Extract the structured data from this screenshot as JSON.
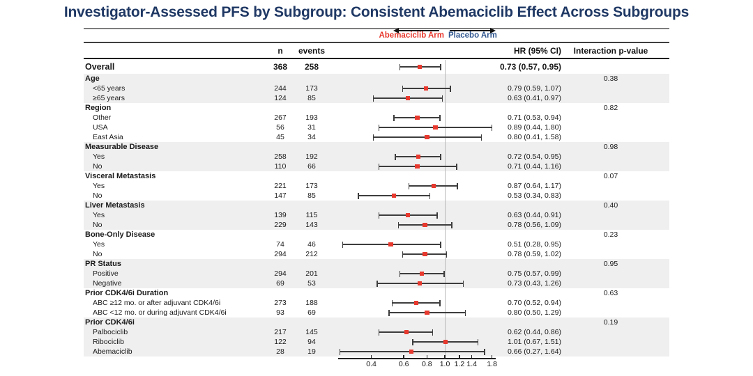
{
  "title": "Investigator-Assessed PFS by Subgroup: Consistent Abemaciclib Effect Across Subgroups",
  "legend": {
    "left_label": "Abemaciclib Arm",
    "right_label": "Placebo Arm"
  },
  "columns": {
    "n": "n",
    "events": "events",
    "hr": "HR (95% CI)",
    "interaction": "Interaction p-value"
  },
  "colors": {
    "title_navy": "#1f3864",
    "abemaciclib_red": "#e8392e",
    "placebo_blue": "#30568f",
    "bar_gray": "#3d3d3d",
    "shade_gray": "#efefef",
    "refline_gray": "#b8b8b8"
  },
  "chart_data": {
    "type": "scatter",
    "subtype": "forest-plot",
    "x_axis": {
      "scale": "log",
      "ticks": [
        "0.4",
        "0.6",
        "0.8",
        "1.0",
        "1.2",
        "1.4",
        "1.8"
      ],
      "reference_line": 1.0,
      "range": [
        0.25,
        1.9
      ]
    },
    "rows": [
      {
        "type": "overall",
        "label": "Overall",
        "n": "368",
        "events": "258",
        "hr": 0.73,
        "lo": 0.57,
        "hi": 0.95,
        "hr_text": "0.73 (0.57, 0.95)"
      },
      {
        "type": "section",
        "label": "Age",
        "p": "0.38"
      },
      {
        "type": "item",
        "label": "<65 years",
        "n": "244",
        "events": "173",
        "hr": 0.79,
        "lo": 0.59,
        "hi": 1.07,
        "hr_text": "0.79 (0.59, 1.07)"
      },
      {
        "type": "item",
        "label": "≥65 years",
        "n": "124",
        "events": "85",
        "hr": 0.63,
        "lo": 0.41,
        "hi": 0.97,
        "hr_text": "0.63 (0.41, 0.97)"
      },
      {
        "type": "section",
        "label": "Region",
        "p": "0.82"
      },
      {
        "type": "item",
        "label": "Other",
        "n": "267",
        "events": "193",
        "hr": 0.71,
        "lo": 0.53,
        "hi": 0.94,
        "hr_text": "0.71 (0.53, 0.94)"
      },
      {
        "type": "item",
        "label": "USA",
        "n": "56",
        "events": "31",
        "hr": 0.89,
        "lo": 0.44,
        "hi": 1.8,
        "hr_text": "0.89 (0.44, 1.80)"
      },
      {
        "type": "item",
        "label": "East Asia",
        "n": "45",
        "events": "34",
        "hr": 0.8,
        "lo": 0.41,
        "hi": 1.58,
        "hr_text": "0.80 (0.41, 1.58)"
      },
      {
        "type": "section",
        "label": "Measurable Disease",
        "p": "0.98"
      },
      {
        "type": "item",
        "label": "Yes",
        "n": "258",
        "events": "192",
        "hr": 0.72,
        "lo": 0.54,
        "hi": 0.95,
        "hr_text": "0.72 (0.54, 0.95)"
      },
      {
        "type": "item",
        "label": "No",
        "n": "110",
        "events": "66",
        "hr": 0.71,
        "lo": 0.44,
        "hi": 1.16,
        "hr_text": "0.71 (0.44, 1.16)"
      },
      {
        "type": "section",
        "label": "Visceral Metastasis",
        "p": "0.07"
      },
      {
        "type": "item",
        "label": "Yes",
        "n": "221",
        "events": "173",
        "hr": 0.87,
        "lo": 0.64,
        "hi": 1.17,
        "hr_text": "0.87 (0.64, 1.17)"
      },
      {
        "type": "item",
        "label": "No",
        "n": "147",
        "events": "85",
        "hr": 0.53,
        "lo": 0.34,
        "hi": 0.83,
        "hr_text": "0.53 (0.34, 0.83)"
      },
      {
        "type": "section",
        "label": "Liver Metastasis",
        "p": "0.40"
      },
      {
        "type": "item",
        "label": "Yes",
        "n": "139",
        "events": "115",
        "hr": 0.63,
        "lo": 0.44,
        "hi": 0.91,
        "hr_text": "0.63 (0.44, 0.91)"
      },
      {
        "type": "item",
        "label": "No",
        "n": "229",
        "events": "143",
        "hr": 0.78,
        "lo": 0.56,
        "hi": 1.09,
        "hr_text": "0.78 (0.56, 1.09)"
      },
      {
        "type": "section",
        "label": "Bone-Only Disease",
        "p": "0.23"
      },
      {
        "type": "item",
        "label": "Yes",
        "n": "74",
        "events": "46",
        "hr": 0.51,
        "lo": 0.28,
        "hi": 0.95,
        "hr_text": "0.51 (0.28, 0.95)"
      },
      {
        "type": "item",
        "label": "No",
        "n": "294",
        "events": "212",
        "hr": 0.78,
        "lo": 0.59,
        "hi": 1.02,
        "hr_text": "0.78 (0.59, 1.02)"
      },
      {
        "type": "section",
        "label": "PR Status",
        "p": "0.95"
      },
      {
        "type": "item",
        "label": "Positive",
        "n": "294",
        "events": "201",
        "hr": 0.75,
        "lo": 0.57,
        "hi": 0.99,
        "hr_text": "0.75 (0.57, 0.99)"
      },
      {
        "type": "item",
        "label": "Negative",
        "n": "69",
        "events": "53",
        "hr": 0.73,
        "lo": 0.43,
        "hi": 1.26,
        "hr_text": "0.73 (0.43, 1.26)"
      },
      {
        "type": "section",
        "label": "Prior CDK4/6i Duration",
        "p": "0.63"
      },
      {
        "type": "item",
        "label": "ABC ≥12 mo. or after adjuvant CDK4/6i",
        "n": "273",
        "events": "188",
        "hr": 0.7,
        "lo": 0.52,
        "hi": 0.94,
        "hr_text": "0.70 (0.52, 0.94)"
      },
      {
        "type": "item",
        "label": "ABC <12 mo. or during adjuvant CDK4/6i",
        "n": "93",
        "events": "69",
        "hr": 0.8,
        "lo": 0.5,
        "hi": 1.29,
        "hr_text": "0.80 (0.50, 1.29)"
      },
      {
        "type": "section",
        "label": "Prior CDK4/6i",
        "p": "0.19"
      },
      {
        "type": "item",
        "label": "Palbociclib",
        "n": "217",
        "events": "145",
        "hr": 0.62,
        "lo": 0.44,
        "hi": 0.86,
        "hr_text": "0.62 (0.44, 0.86)"
      },
      {
        "type": "item",
        "label": "Ribociclib",
        "n": "122",
        "events": "94",
        "hr": 1.01,
        "lo": 0.67,
        "hi": 1.51,
        "hr_text": "1.01 (0.67, 1.51)"
      },
      {
        "type": "item",
        "label": "Abemaciclib",
        "n": "28",
        "events": "19",
        "hr": 0.66,
        "lo": 0.27,
        "hi": 1.64,
        "hr_text": "0.66 (0.27, 1.64)"
      }
    ]
  }
}
